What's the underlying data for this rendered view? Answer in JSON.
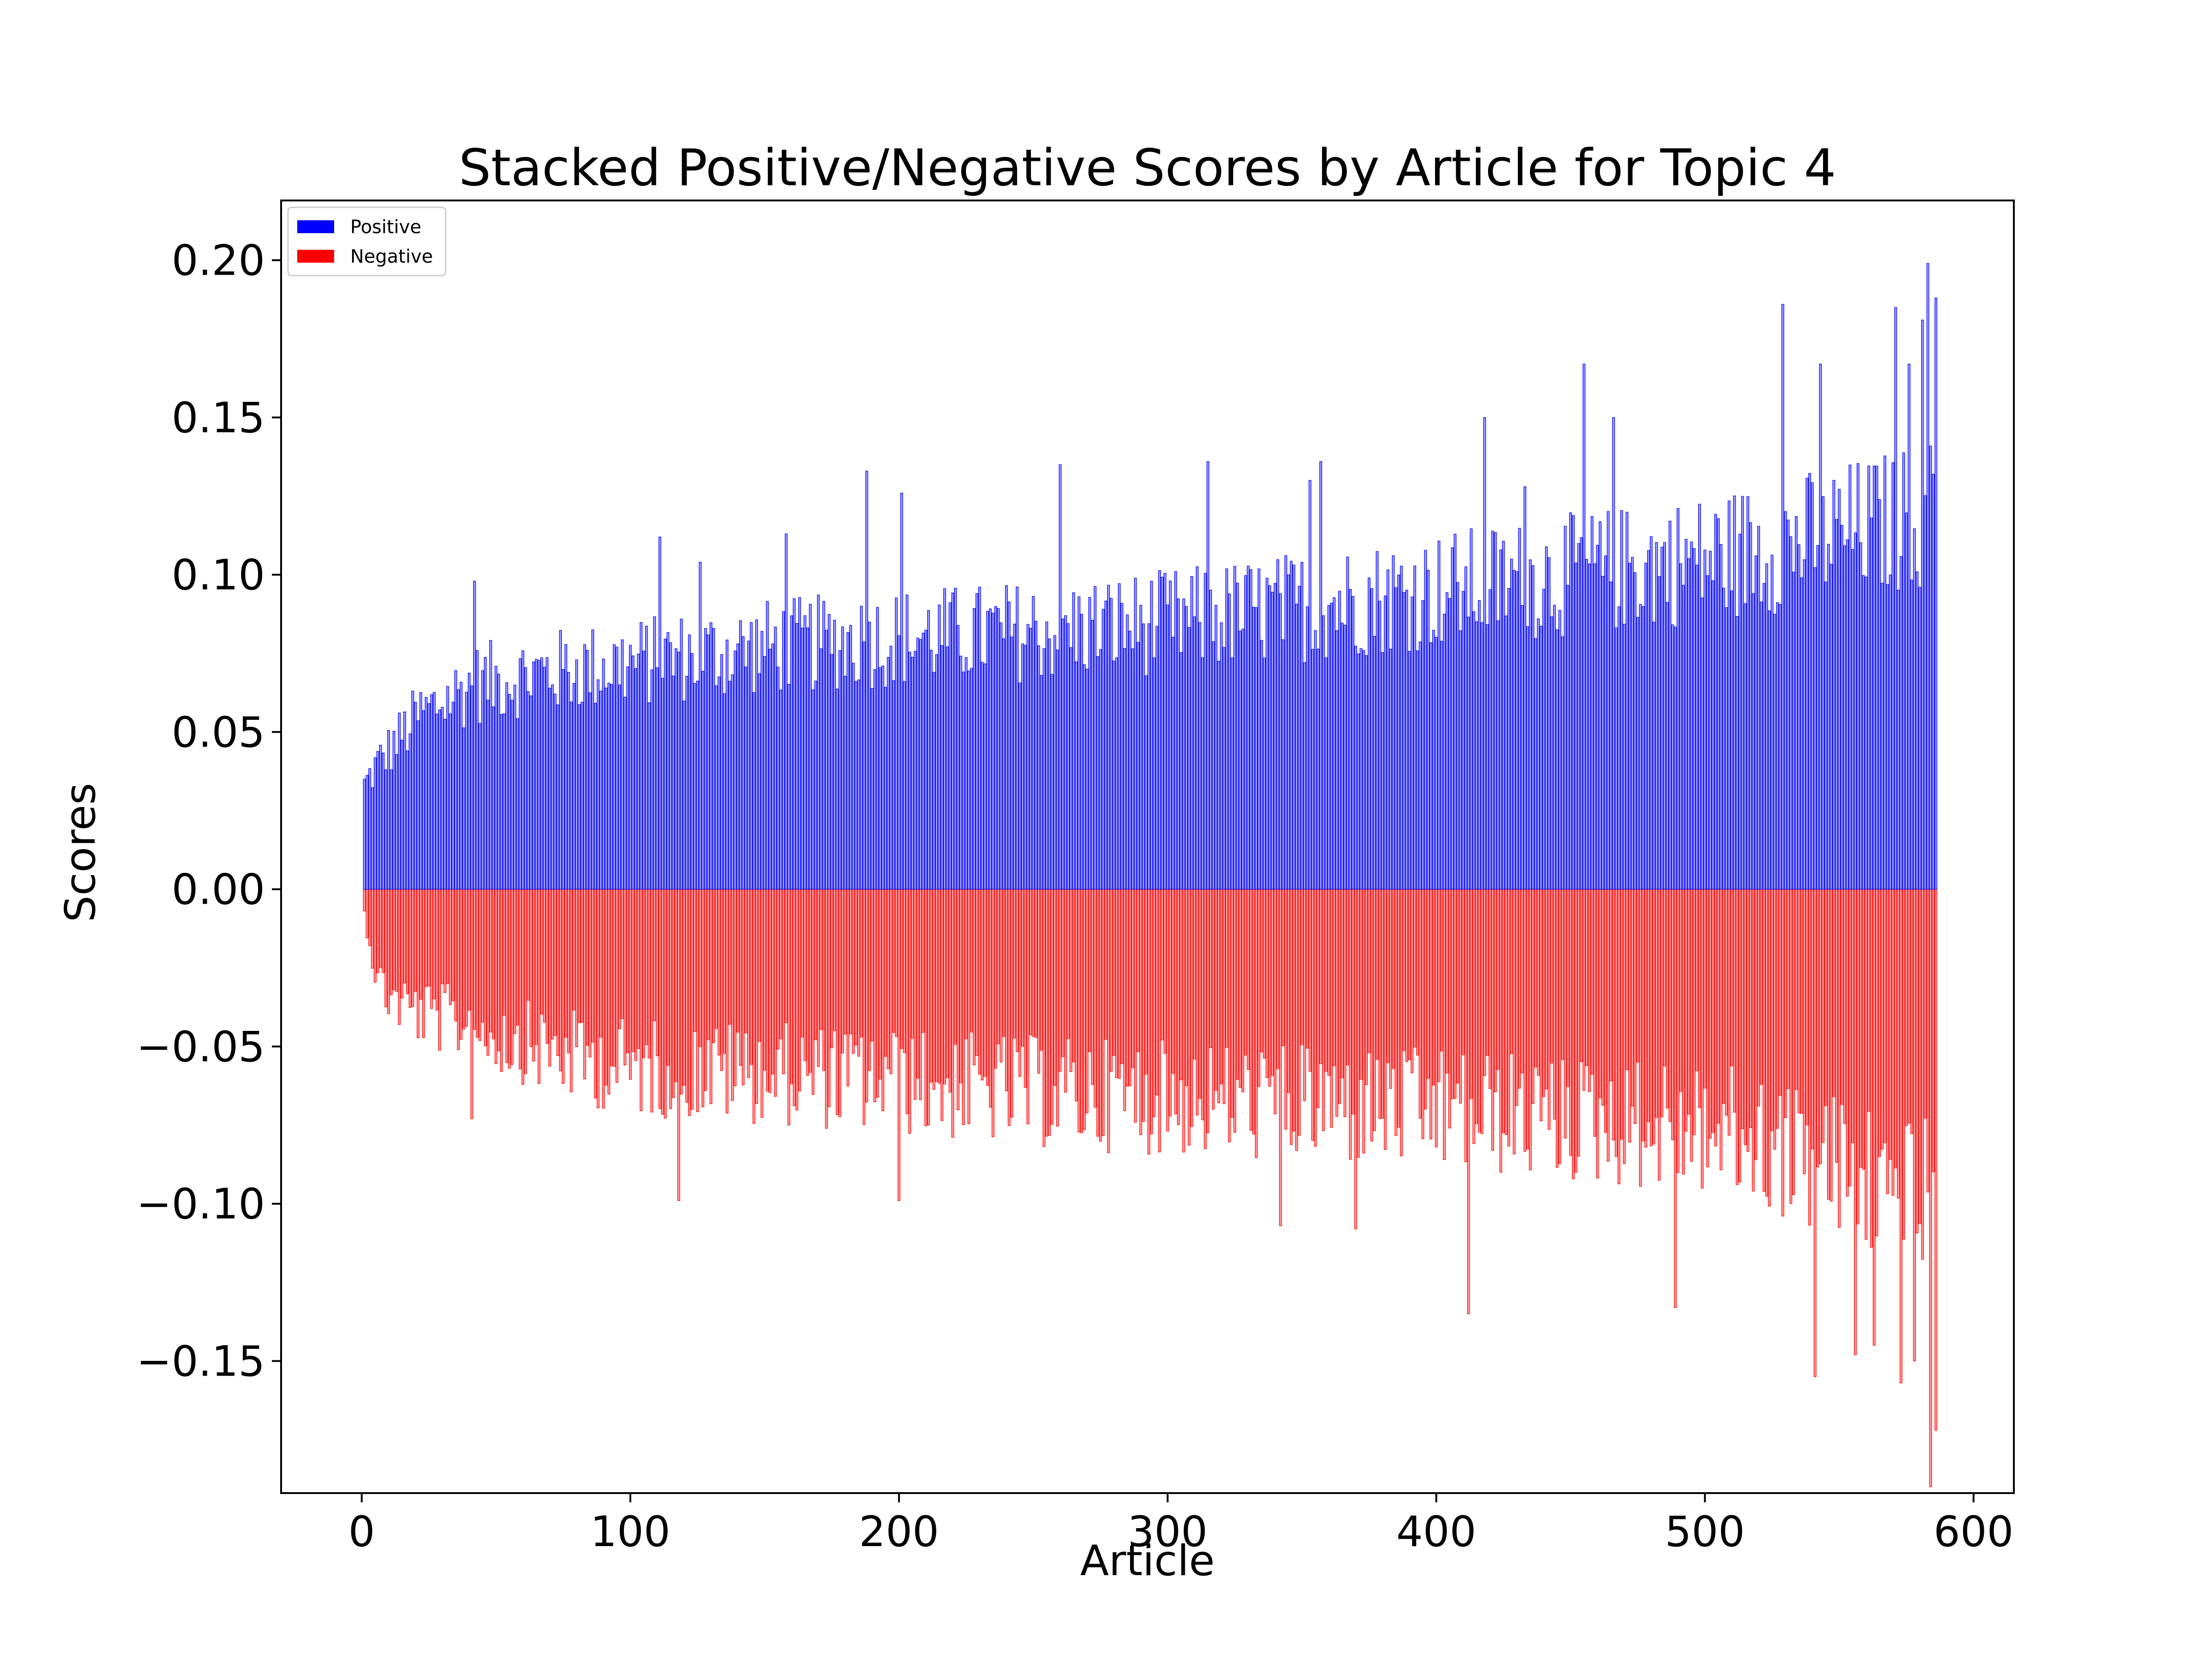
{
  "chart_data": {
    "type": "bar",
    "title": "Stacked Positive/Negative Scores by Article for Topic 4",
    "xlabel": "Article",
    "ylabel": "Scores",
    "xlim": [
      -30,
      615
    ],
    "ylim": [
      -0.192,
      0.219
    ],
    "x_ticks": [
      0,
      100,
      200,
      300,
      400,
      500,
      600
    ],
    "x_tick_labels": [
      "0",
      "100",
      "200",
      "300",
      "400",
      "500",
      "600"
    ],
    "y_ticks": [
      -0.15,
      -0.1,
      -0.05,
      0.0,
      0.05,
      0.1,
      0.15,
      0.2
    ],
    "y_tick_labels": [
      "−0.15",
      "−0.10",
      "−0.05",
      "0.00",
      "0.05",
      "0.10",
      "0.15",
      "0.20"
    ],
    "grid": false,
    "legend_position": "top-left",
    "n_articles": 586,
    "series": [
      {
        "name": "Positive",
        "color": "#0000ff",
        "anchors": [
          [
            0,
            0.033
          ],
          [
            5,
            0.04
          ],
          [
            10,
            0.045
          ],
          [
            20,
            0.055
          ],
          [
            40,
            0.065
          ],
          [
            60,
            0.068
          ],
          [
            80,
            0.07
          ],
          [
            100,
            0.072
          ],
          [
            150,
            0.077
          ],
          [
            200,
            0.08
          ],
          [
            250,
            0.082
          ],
          [
            300,
            0.085
          ],
          [
            350,
            0.09
          ],
          [
            400,
            0.095
          ],
          [
            450,
            0.1
          ],
          [
            500,
            0.105
          ],
          [
            530,
            0.11
          ],
          [
            560,
            0.115
          ],
          [
            585,
            0.12
          ]
        ],
        "peaks": [
          [
            41,
            0.098
          ],
          [
            110,
            0.112
          ],
          [
            125,
            0.104
          ],
          [
            157,
            0.113
          ],
          [
            187,
            0.133
          ],
          [
            200,
            0.126
          ],
          [
            259,
            0.135
          ],
          [
            314,
            0.136
          ],
          [
            352,
            0.13
          ],
          [
            356,
            0.136
          ],
          [
            417,
            0.15
          ],
          [
            432,
            0.128
          ],
          [
            454,
            0.167
          ],
          [
            465,
            0.15
          ],
          [
            528,
            0.186
          ],
          [
            542,
            0.167
          ],
          [
            570,
            0.185
          ],
          [
            575,
            0.167
          ],
          [
            580,
            0.181
          ],
          [
            582,
            0.199
          ],
          [
            586,
            0.188
          ]
        ]
      },
      {
        "name": "Negative",
        "color": "#ff0000",
        "anchors": [
          [
            0,
            -0.008
          ],
          [
            5,
            -0.03
          ],
          [
            10,
            -0.035
          ],
          [
            20,
            -0.04
          ],
          [
            40,
            -0.045
          ],
          [
            60,
            -0.05
          ],
          [
            80,
            -0.055
          ],
          [
            100,
            -0.058
          ],
          [
            150,
            -0.06
          ],
          [
            200,
            -0.063
          ],
          [
            250,
            -0.066
          ],
          [
            300,
            -0.068
          ],
          [
            350,
            -0.07
          ],
          [
            400,
            -0.072
          ],
          [
            450,
            -0.075
          ],
          [
            500,
            -0.078
          ],
          [
            530,
            -0.085
          ],
          [
            560,
            -0.095
          ],
          [
            585,
            -0.105
          ]
        ],
        "peaks": [
          [
            40,
            -0.073
          ],
          [
            117,
            -0.099
          ],
          [
            199,
            -0.099
          ],
          [
            341,
            -0.107
          ],
          [
            369,
            -0.108
          ],
          [
            411,
            -0.135
          ],
          [
            488,
            -0.133
          ],
          [
            540,
            -0.155
          ],
          [
            555,
            -0.148
          ],
          [
            562,
            -0.145
          ],
          [
            572,
            -0.157
          ],
          [
            577,
            -0.15
          ],
          [
            583,
            -0.19
          ],
          [
            585,
            -0.172
          ]
        ]
      }
    ]
  }
}
